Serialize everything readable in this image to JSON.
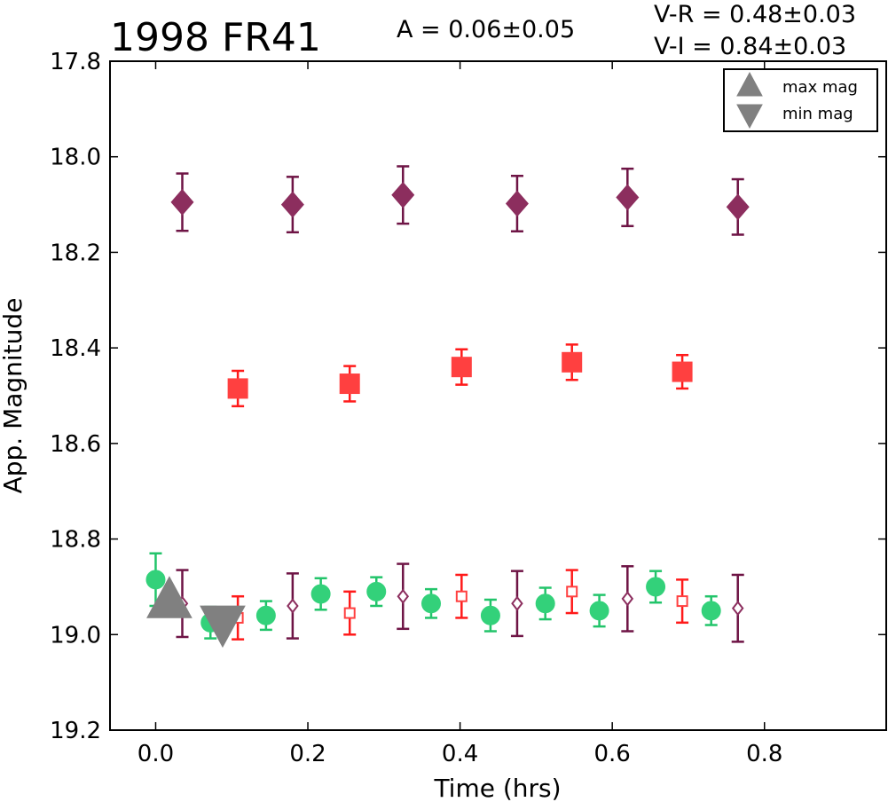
{
  "chart_data": {
    "type": "scatter",
    "title": "1998 FR41",
    "amplitude_label": "A  = 0.06±0.05",
    "color_labels": [
      "V-R = 0.48±0.03",
      "V-I  = 0.84±0.03"
    ],
    "xlabel": "Time (hrs)",
    "ylabel": "App. Magnitude",
    "xlim": [
      -0.06,
      0.96
    ],
    "ylim": [
      19.2,
      17.8
    ],
    "y_inverted": true,
    "xticks": [
      0.0,
      0.2,
      0.4,
      0.6,
      0.8
    ],
    "xtick_labels": [
      "0.0",
      "0.2",
      "0.4",
      "0.6",
      "0.8"
    ],
    "yticks": [
      17.8,
      18.0,
      18.2,
      18.4,
      18.6,
      18.8,
      19.0,
      19.2
    ],
    "ytick_labels": [
      "17.8",
      "18.0",
      "18.2",
      "18.4",
      "18.6",
      "18.8",
      "19.0",
      "19.2"
    ],
    "grid": false,
    "legend": {
      "placement": "top-right",
      "entries": [
        {
          "label": "max mag",
          "marker": "triangle-up",
          "color": "#808080"
        },
        {
          "label": "min mag",
          "marker": "triangle-down",
          "color": "#808080"
        }
      ]
    },
    "series": [
      {
        "marker": "diamond-filled",
        "color": "#8c2e5e",
        "errcolor": "#6e1445",
        "points": [
          {
            "x": 0.035,
            "y": 18.095,
            "err": 0.06
          },
          {
            "x": 0.18,
            "y": 18.1,
            "err": 0.058
          },
          {
            "x": 0.325,
            "y": 18.08,
            "err": 0.06
          },
          {
            "x": 0.475,
            "y": 18.098,
            "err": 0.058
          },
          {
            "x": 0.62,
            "y": 18.085,
            "err": 0.06
          },
          {
            "x": 0.765,
            "y": 18.105,
            "err": 0.058
          }
        ]
      },
      {
        "marker": "square-filled",
        "color": "#ff4040",
        "errcolor": "#ff1a1a",
        "points": [
          {
            "x": 0.108,
            "y": 18.485,
            "err": 0.037
          },
          {
            "x": 0.255,
            "y": 18.475,
            "err": 0.037
          },
          {
            "x": 0.402,
            "y": 18.44,
            "err": 0.037
          },
          {
            "x": 0.547,
            "y": 18.43,
            "err": 0.037
          },
          {
            "x": 0.692,
            "y": 18.45,
            "err": 0.035
          }
        ]
      },
      {
        "marker": "circle-filled",
        "color": "#33d17a",
        "errcolor": "#22c46a",
        "points": [
          {
            "x": 0.0,
            "y": 18.885,
            "err": 0.055
          },
          {
            "x": 0.072,
            "y": 18.975,
            "err": 0.033
          },
          {
            "x": 0.145,
            "y": 18.96,
            "err": 0.03
          },
          {
            "x": 0.217,
            "y": 18.915,
            "err": 0.033
          },
          {
            "x": 0.29,
            "y": 18.91,
            "err": 0.03
          },
          {
            "x": 0.362,
            "y": 18.935,
            "err": 0.03
          },
          {
            "x": 0.44,
            "y": 18.96,
            "err": 0.033
          },
          {
            "x": 0.512,
            "y": 18.935,
            "err": 0.033
          },
          {
            "x": 0.583,
            "y": 18.95,
            "err": 0.033
          },
          {
            "x": 0.657,
            "y": 18.9,
            "err": 0.033
          },
          {
            "x": 0.73,
            "y": 18.95,
            "err": 0.03
          }
        ]
      },
      {
        "marker": "square-open",
        "color": "#ff4040",
        "errcolor": "#ff1a1a",
        "points": [
          {
            "x": 0.108,
            "y": 18.965,
            "err": 0.045
          },
          {
            "x": 0.255,
            "y": 18.955,
            "err": 0.045
          },
          {
            "x": 0.402,
            "y": 18.92,
            "err": 0.045
          },
          {
            "x": 0.547,
            "y": 18.91,
            "err": 0.045
          },
          {
            "x": 0.692,
            "y": 18.93,
            "err": 0.045
          }
        ]
      },
      {
        "marker": "diamond-open",
        "color": "#8c2e5e",
        "errcolor": "#6e1445",
        "points": [
          {
            "x": 0.035,
            "y": 18.935,
            "err": 0.07
          },
          {
            "x": 0.18,
            "y": 18.94,
            "err": 0.068
          },
          {
            "x": 0.325,
            "y": 18.92,
            "err": 0.068
          },
          {
            "x": 0.475,
            "y": 18.935,
            "err": 0.068
          },
          {
            "x": 0.62,
            "y": 18.925,
            "err": 0.068
          },
          {
            "x": 0.765,
            "y": 18.945,
            "err": 0.07
          }
        ]
      },
      {
        "marker": "triangle-up",
        "color": "#808080",
        "errcolor": "#808080",
        "points": [
          {
            "x": 0.018,
            "y": 18.935,
            "err": 0
          }
        ]
      },
      {
        "marker": "triangle-down",
        "color": "#808080",
        "errcolor": "#808080",
        "points": [
          {
            "x": 0.088,
            "y": 18.97,
            "err": 0
          }
        ]
      }
    ]
  }
}
